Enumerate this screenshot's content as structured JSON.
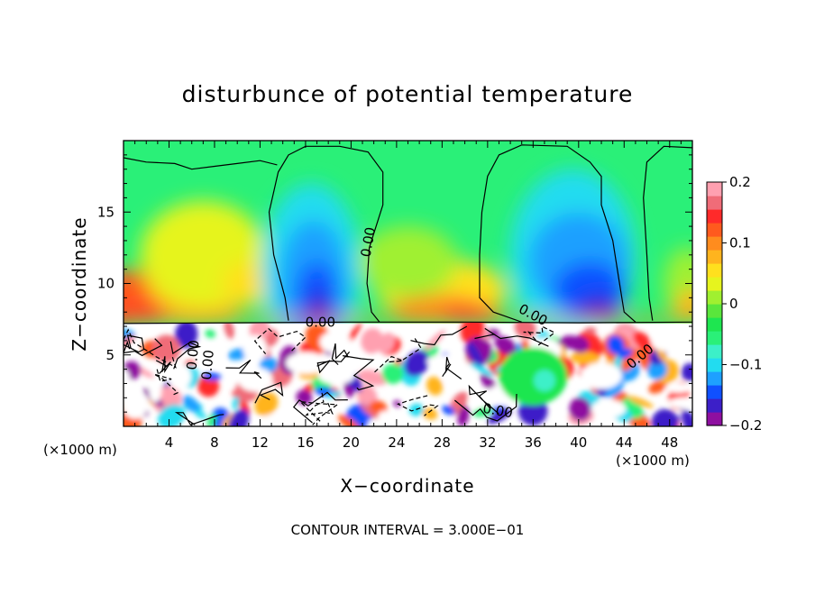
{
  "chart_data": {
    "type": "heatmap",
    "title": "disturbunce of potential temperature",
    "xlabel": "X−coordinate",
    "ylabel": "Z−coordinate",
    "x_unit_left": "(×1000 m)",
    "x_unit_right": "(×1000 m)",
    "footer": "CONTOUR INTERVAL = 3.000E−01",
    "xlim": [
      0,
      50
    ],
    "ylim": [
      0,
      20
    ],
    "x_ticks": [
      4,
      8,
      12,
      16,
      20,
      24,
      28,
      32,
      36,
      40,
      44,
      48
    ],
    "y_ticks": [
      5,
      10,
      15
    ],
    "colorbar": {
      "range": [
        -0.2,
        0.2
      ],
      "tick_values": [
        0.2,
        0.1,
        0,
        -0.1,
        -0.2
      ],
      "tick_labels": [
        "0.2",
        "0.1",
        "0",
        "−0.1",
        "−0.2"
      ],
      "colors": [
        "#8e0fa0",
        "#3c1fc8",
        "#1050ff",
        "#1ea0ff",
        "#22dcf0",
        "#3cf0c8",
        "#2af078",
        "#1ee650",
        "#5ae63c",
        "#a0f030",
        "#e6f41e",
        "#ffe01e",
        "#ffb41e",
        "#ff8c1e",
        "#ff5a1e",
        "#ff2a2a",
        "#f06c78",
        "#ffa0b0"
      ]
    },
    "contour_labels": [
      "0.00",
      "0.00",
      "0.00",
      "0.00",
      "0.00",
      "0.00",
      "0.00"
    ]
  }
}
